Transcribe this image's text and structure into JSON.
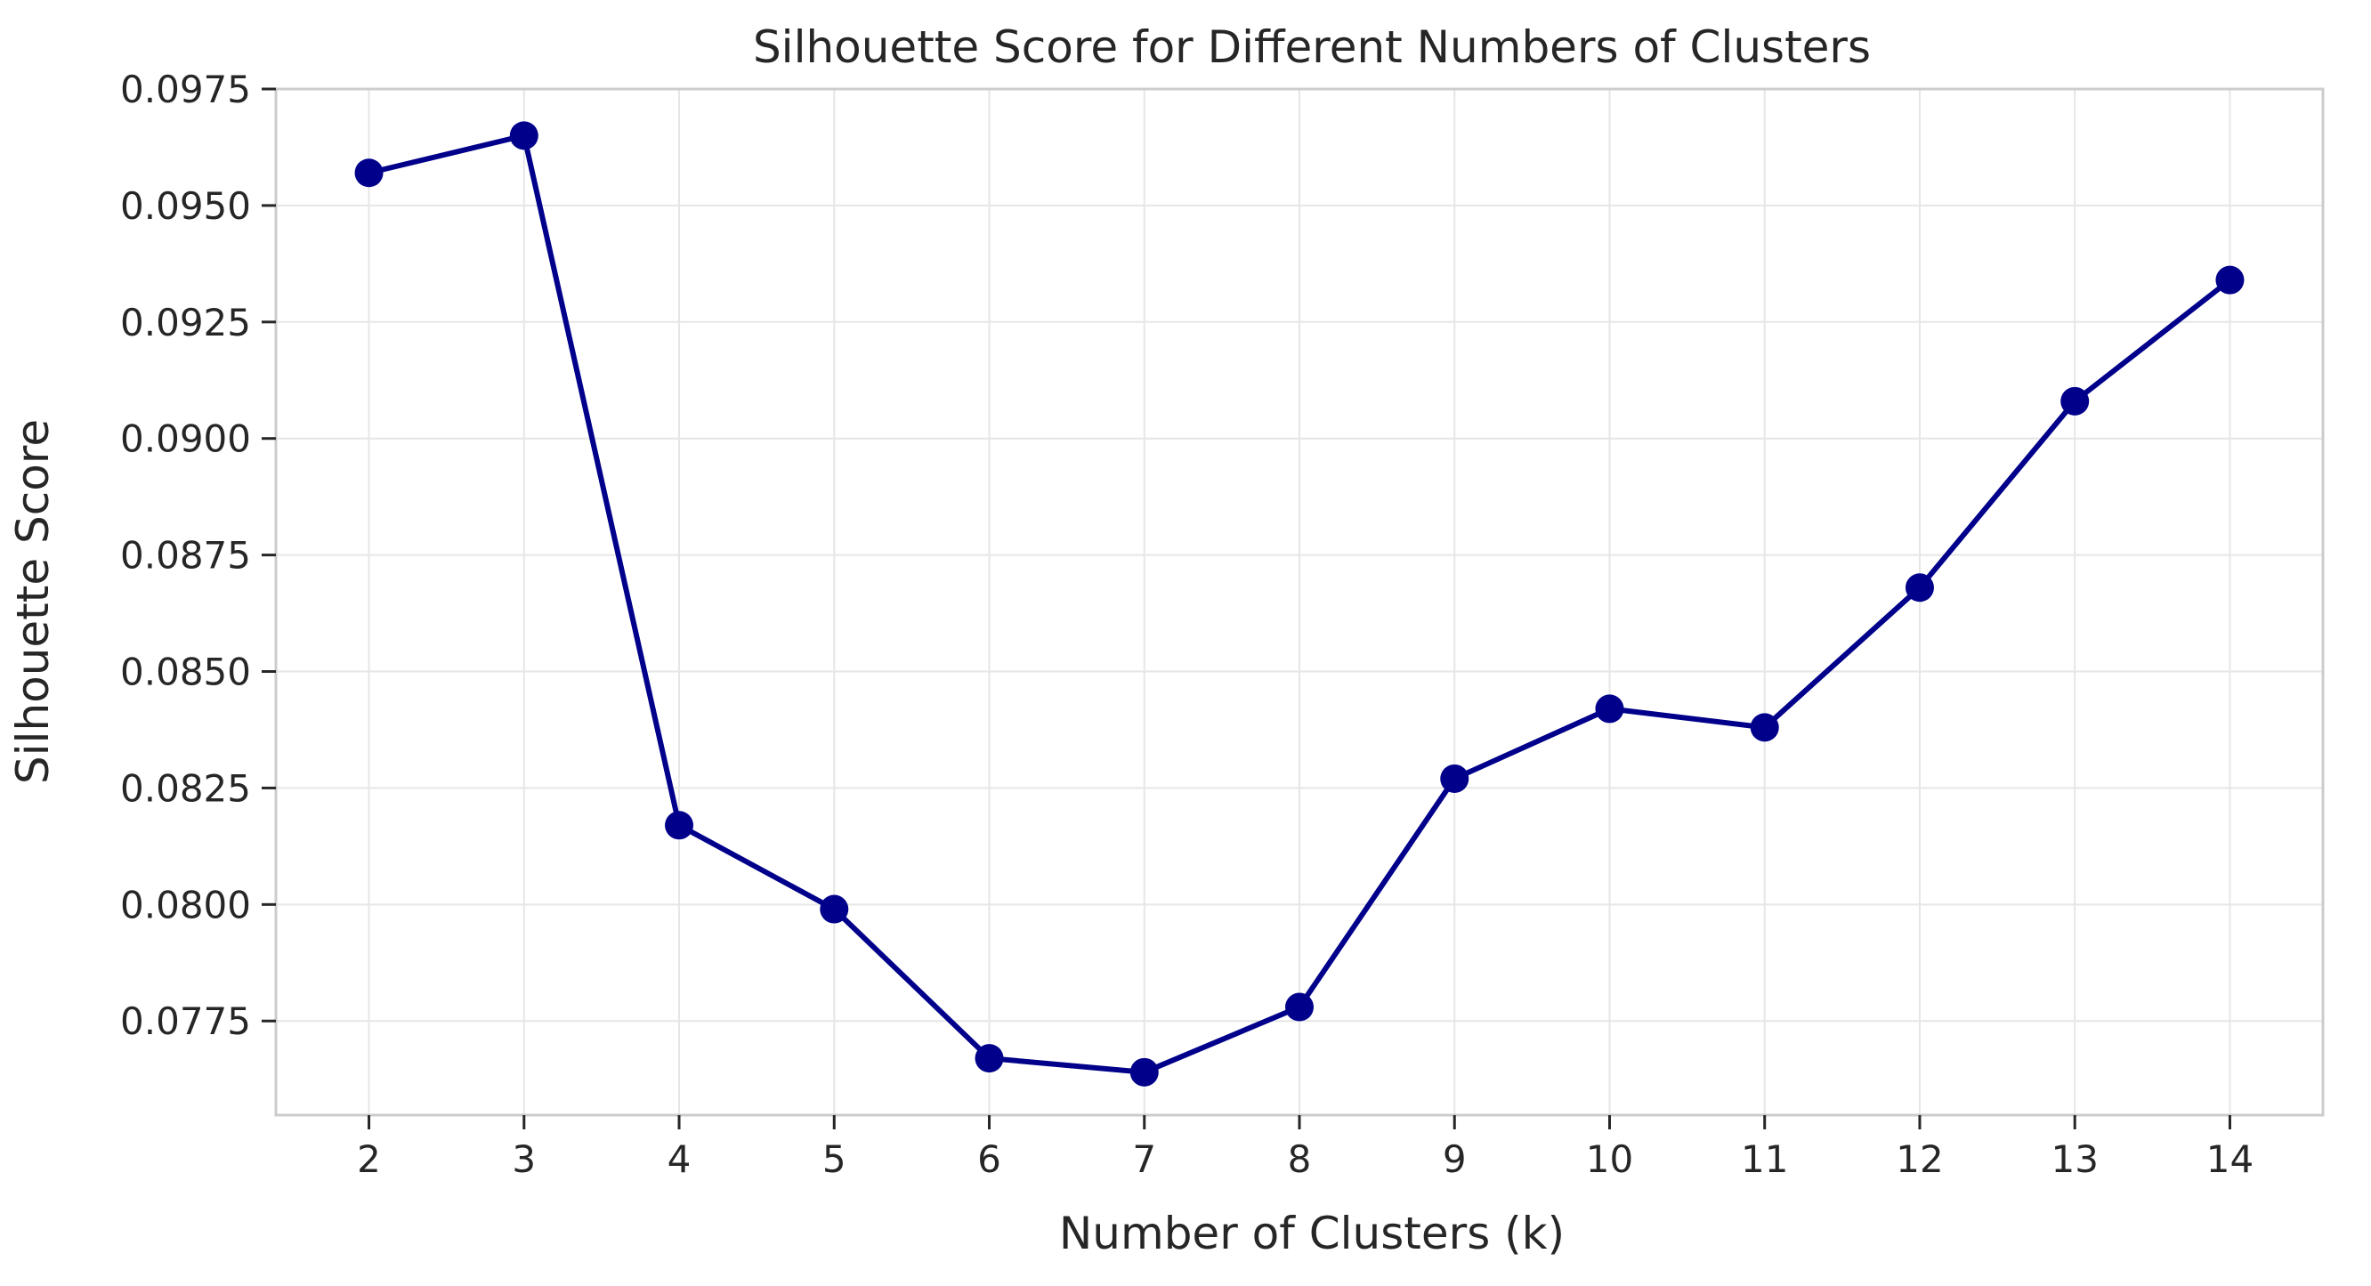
{
  "chart_data": {
    "type": "line",
    "title": "Silhouette Score for Different Numbers of Clusters",
    "xlabel": "Number of Clusters (k)",
    "ylabel": "Silhouette Score",
    "x": [
      2,
      3,
      4,
      5,
      6,
      7,
      8,
      9,
      10,
      11,
      12,
      13,
      14
    ],
    "x_tick_labels": [
      "2",
      "3",
      "4",
      "5",
      "6",
      "7",
      "8",
      "9",
      "10",
      "11",
      "12",
      "13",
      "14"
    ],
    "series": [
      {
        "values": [
          0.0957,
          0.0965,
          0.0817,
          0.0799,
          0.0767,
          0.0764,
          0.0778,
          0.0827,
          0.0842,
          0.0838,
          0.0868,
          0.0908,
          0.0934
        ],
        "color": "#00008b",
        "marker": "circle"
      }
    ],
    "y_ticks": [
      0.0775,
      0.08,
      0.0825,
      0.085,
      0.0875,
      0.09,
      0.0925,
      0.095,
      0.0975
    ],
    "y_tick_labels": [
      "0.0775",
      "0.0800",
      "0.0825",
      "0.0850",
      "0.0875",
      "0.0900",
      "0.0925",
      "0.0950",
      "0.0975"
    ],
    "xlim": [
      1.4,
      14.6
    ],
    "ylim": [
      0.07548,
      0.0975
    ],
    "grid": true,
    "legend": false
  }
}
